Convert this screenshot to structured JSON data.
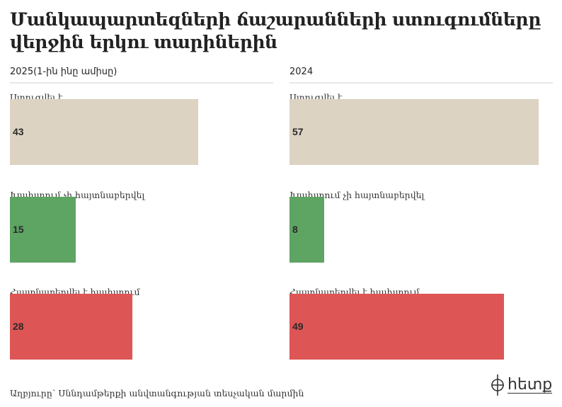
{
  "title": "Մանկապարտեզների ճաշարանների ստուգումները վերջին երկու տարիներին",
  "footer": {
    "source": "Աղբյուրը՝ Սննդամթերքի անվտանգության տեսչական մարմին",
    "logo_text": "հետք"
  },
  "colors": {
    "checked": "#dcd3c2",
    "not_found": "#5ea463",
    "found": "#de5555"
  },
  "chart_data": [
    {
      "type": "bar",
      "title": "2025(1-ին ինը ամիսը)",
      "orientation": "horizontal",
      "categories": [
        "Ստուգվել է",
        "Խախտում չի հայտնաբերվել",
        "Հայտնաբերվել է խախտում"
      ],
      "values": [
        43,
        15,
        28
      ],
      "xlim": [
        0,
        57
      ]
    },
    {
      "type": "bar",
      "title": "2024",
      "orientation": "horizontal",
      "categories": [
        "Ստուգվել է",
        "Խախտում չի հայտնաբերվել",
        "Հայտնաբերվել է խախտում"
      ],
      "values": [
        57,
        8,
        49
      ],
      "xlim": [
        0,
        57
      ]
    }
  ]
}
